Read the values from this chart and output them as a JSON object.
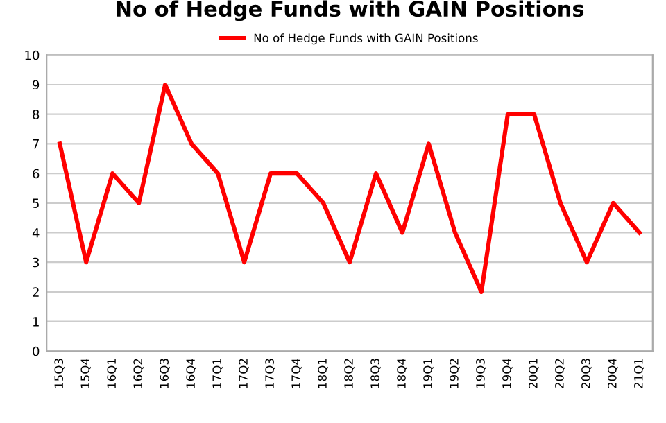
{
  "chart_data": {
    "type": "line",
    "title": "No of Hedge Funds with GAIN Positions",
    "categories": [
      "15Q3",
      "15Q4",
      "16Q1",
      "16Q2",
      "16Q3",
      "16Q4",
      "17Q1",
      "17Q2",
      "17Q3",
      "17Q4",
      "18Q1",
      "18Q2",
      "18Q3",
      "18Q4",
      "19Q1",
      "19Q2",
      "19Q3",
      "19Q4",
      "20Q1",
      "20Q2",
      "20Q3",
      "20Q4",
      "21Q1"
    ],
    "series": [
      {
        "name": "No of Hedge Funds with GAIN Positions",
        "color": "#ff0000",
        "values": [
          7,
          3,
          6,
          5,
          9,
          7,
          6,
          3,
          6,
          6,
          5,
          3,
          6,
          4,
          7,
          4,
          2,
          8,
          8,
          5,
          3,
          5,
          4
        ]
      }
    ],
    "ylim": [
      0,
      10
    ],
    "yticks": [
      0,
      1,
      2,
      3,
      4,
      5,
      6,
      7,
      8,
      9,
      10
    ],
    "grid": "y",
    "legend": "top",
    "marker": "none",
    "line_style": "solid"
  }
}
